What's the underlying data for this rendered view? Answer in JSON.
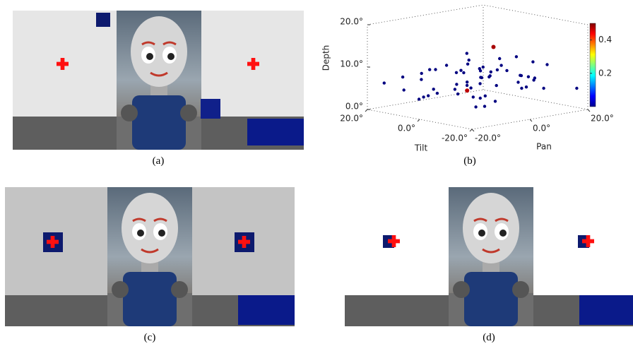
{
  "panels": [
    {
      "caption": "(a)"
    },
    {
      "caption": "(b)"
    },
    {
      "caption": "(c)"
    },
    {
      "caption": "(d)"
    }
  ],
  "chart_data": {
    "type": "scatter3d",
    "xlabel": "Pan",
    "ylabel": "Tilt",
    "zlabel": "Depth",
    "xlim": [
      -20,
      20
    ],
    "ylim": [
      -20,
      20
    ],
    "zlim": [
      0,
      20
    ],
    "clim": [
      0,
      0.5
    ],
    "xticks": [
      {
        "value": -20,
        "label": "-20.0°"
      },
      {
        "value": 0,
        "label": "0.0°"
      },
      {
        "value": 20,
        "label": "20.0°"
      }
    ],
    "yticks": [
      {
        "value": -20,
        "label": "-20.0°"
      },
      {
        "value": 0,
        "label": "0.0°"
      },
      {
        "value": 20,
        "label": "20.0°"
      }
    ],
    "zticks": [
      {
        "value": 0,
        "label": "0.0°"
      },
      {
        "value": 10,
        "label": "10.0°"
      },
      {
        "value": 20,
        "label": "20.0°"
      }
    ],
    "cticks": [
      0.2,
      0.4
    ],
    "x": [
      -15,
      -10,
      -5,
      0,
      5,
      10,
      15,
      -12,
      -8,
      -3,
      2,
      7,
      12,
      17,
      -17,
      -6,
      4,
      9,
      -1,
      14,
      -14,
      -9,
      -4,
      1,
      6,
      11,
      16,
      -11,
      -2,
      3,
      8,
      13,
      -7,
      -13,
      0,
      5,
      10,
      -5,
      15,
      -10,
      3,
      -3,
      8,
      -8,
      12,
      -12,
      1,
      6,
      -6,
      11,
      -1,
      4,
      9,
      -4,
      2,
      7,
      0,
      -16,
      18,
      10,
      10,
      0
    ],
    "y": [
      12,
      5,
      -3,
      8,
      -10,
      2,
      15,
      -8,
      10,
      0,
      -5,
      7,
      -12,
      4,
      -2,
      14,
      -15,
      9,
      3,
      -6,
      6,
      -11,
      11,
      -1,
      13,
      -9,
      1,
      16,
      -7,
      5,
      -13,
      10,
      -4,
      8,
      4,
      -2,
      6,
      2,
      -10,
      -14,
      12,
      15,
      -8,
      3,
      -3,
      -16,
      0,
      -12,
      -6,
      11,
      7,
      -4,
      14,
      17,
      -9,
      1,
      4,
      18,
      -18,
      5,
      5,
      4
    ],
    "z": [
      8,
      10,
      6,
      5,
      7,
      9,
      4,
      11,
      3,
      12,
      6,
      8,
      5,
      10,
      7,
      2,
      9,
      4,
      13,
      6,
      8,
      5,
      3,
      10,
      7,
      11,
      6,
      4,
      9,
      2,
      8,
      5,
      12,
      3,
      6,
      9,
      7,
      4,
      10,
      6,
      3,
      8,
      5,
      11,
      7,
      4,
      9,
      6,
      2,
      5,
      8,
      12,
      3,
      7,
      10,
      1,
      4,
      6,
      5,
      13,
      13,
      4
    ],
    "c": [
      0,
      0,
      0,
      0,
      0,
      0,
      0,
      0,
      0,
      0,
      0,
      0,
      0,
      0,
      0,
      0,
      0,
      0,
      0,
      0,
      0,
      0,
      0,
      0,
      0,
      0,
      0,
      0,
      0,
      0,
      0,
      0,
      0,
      0,
      0,
      0,
      0,
      0,
      0,
      0,
      0,
      0,
      0,
      0,
      0,
      0,
      0,
      0,
      0,
      0,
      0,
      0,
      0,
      0,
      0,
      0,
      0,
      0,
      0,
      0,
      0.48,
      0.47
    ]
  }
}
